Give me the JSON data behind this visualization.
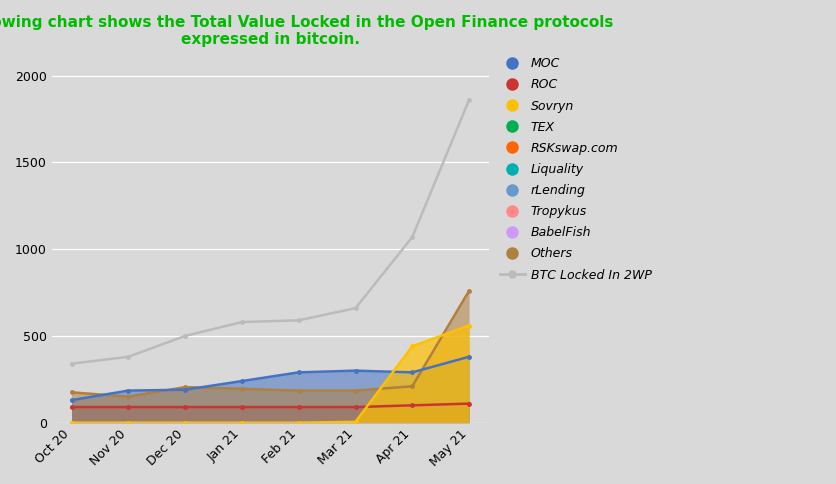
{
  "title": "The following chart shows the Total Value Locked in the Open Finance protocols\nexpressed in bitcoin.",
  "title_color": "#00bb00",
  "background_color": "#d9d9d9",
  "x_labels": [
    "Oct 20",
    "Nov 20",
    "Dec 20",
    "Jan 21",
    "Feb 21",
    "Mar 21",
    "Apr 21",
    "May 21"
  ],
  "x_values": [
    0,
    1,
    2,
    3,
    4,
    5,
    6,
    7
  ],
  "ylim": [
    0,
    2100
  ],
  "yticks": [
    0,
    500,
    1000,
    1500,
    2000
  ],
  "series": {
    "MOC": {
      "color": "#4472c4",
      "alpha": 0.55,
      "values": [
        130,
        185,
        190,
        240,
        290,
        300,
        290,
        380
      ]
    },
    "ROC": {
      "color": "#cc3333",
      "alpha": 0.55,
      "values": [
        90,
        90,
        90,
        90,
        90,
        90,
        100,
        110
      ]
    },
    "Sovryn": {
      "color": "#ffc000",
      "alpha": 0.7,
      "values": [
        0,
        0,
        0,
        0,
        0,
        5,
        440,
        560
      ]
    },
    "TEX": {
      "color": "#00b050",
      "alpha": 0.7,
      "values": [
        0,
        0,
        0,
        0,
        0,
        0,
        0,
        0
      ]
    },
    "RSKswap.com": {
      "color": "#ff6600",
      "alpha": 0.7,
      "values": [
        0,
        0,
        0,
        0,
        0,
        0,
        0,
        0
      ]
    },
    "Liquality": {
      "color": "#00b0b0",
      "alpha": 0.7,
      "values": [
        0,
        0,
        0,
        0,
        0,
        0,
        0,
        0
      ]
    },
    "rLending": {
      "color": "#6699cc",
      "alpha": 0.55,
      "values": [
        0,
        0,
        0,
        0,
        0,
        0,
        0,
        0
      ]
    },
    "Tropykus": {
      "color": "#ff8888",
      "alpha": 0.55,
      "values": [
        0,
        0,
        0,
        0,
        0,
        0,
        0,
        0
      ]
    },
    "BabelFish": {
      "color": "#cc99ff",
      "alpha": 0.55,
      "values": [
        0,
        0,
        0,
        0,
        0,
        0,
        0,
        0
      ]
    },
    "Others": {
      "color": "#b08040",
      "alpha": 0.55,
      "values": [
        175,
        150,
        205,
        195,
        185,
        185,
        210,
        760
      ]
    },
    "BTC Locked In 2WP": {
      "color": "#bbbbbb",
      "values": [
        340,
        380,
        500,
        580,
        590,
        660,
        1070,
        1860
      ]
    }
  },
  "fill_order": [
    "ROC",
    "MOC",
    "Others",
    "Sovryn"
  ],
  "line_only": [
    "BTC Locked In 2WP"
  ],
  "legend_entries": [
    "MOC",
    "ROC",
    "Sovryn",
    "TEX",
    "RSKswap.com",
    "Liquality",
    "rLending",
    "Tropykus",
    "BabelFish",
    "Others",
    "BTC Locked In 2WP"
  ],
  "legend_colors": [
    "#4472c4",
    "#cc3333",
    "#ffc000",
    "#00b050",
    "#ff6600",
    "#00b0b0",
    "#6699cc",
    "#ff8888",
    "#cc99ff",
    "#b08040",
    "#bbbbbb"
  ]
}
